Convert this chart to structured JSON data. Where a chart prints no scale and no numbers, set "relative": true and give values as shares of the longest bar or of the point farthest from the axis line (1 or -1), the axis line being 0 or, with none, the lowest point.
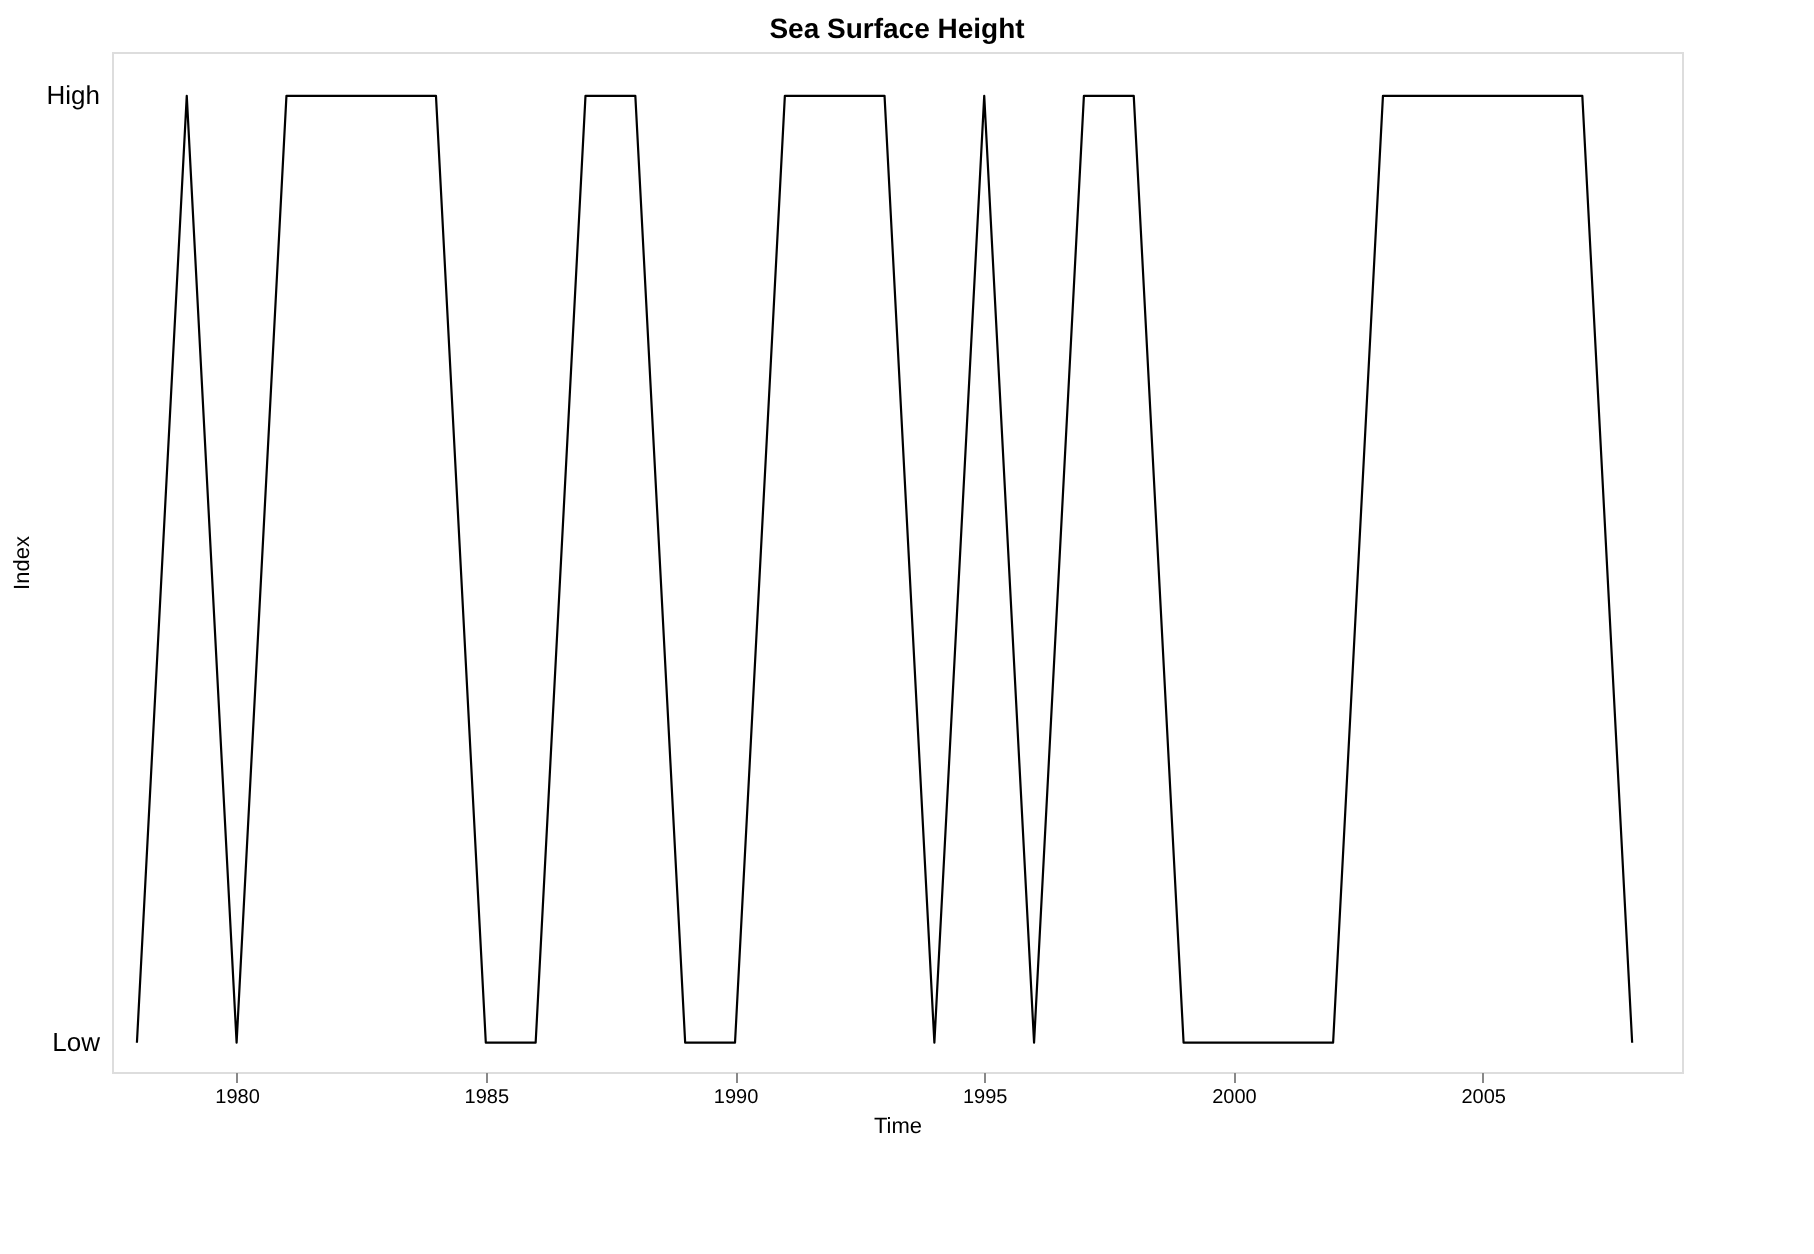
{
  "chart_data": {
    "type": "line",
    "title": "Sea Surface Height",
    "xlabel": "Time",
    "ylabel": "Index",
    "x": [
      1978,
      1979,
      1980,
      1981,
      1982,
      1983,
      1984,
      1985,
      1986,
      1987,
      1988,
      1989,
      1990,
      1991,
      1992,
      1993,
      1994,
      1995,
      1996,
      1997,
      1998,
      1999,
      2000,
      2001,
      2002,
      2003,
      2004,
      2005,
      2006,
      2007,
      2008
    ],
    "series": [
      {
        "color": "#000000",
        "values": [
          0.03,
          1,
          0.03,
          1,
          1,
          1,
          1,
          0.03,
          0.03,
          1,
          1,
          0.03,
          0.03,
          1,
          1,
          1,
          0.03,
          1,
          0.03,
          1,
          1,
          0.03,
          0.03,
          0.03,
          0.03,
          1,
          1,
          1,
          1,
          1,
          0.03
        ]
      }
    ],
    "relative": true,
    "annotations": [
      "High",
      "Low"
    ],
    "xlim": [
      1977.5,
      2009
    ],
    "xticks": [
      1980,
      1985,
      1990,
      1995,
      2000,
      2005
    ],
    "grid": false,
    "marker": "none",
    "line_style": "solid"
  }
}
